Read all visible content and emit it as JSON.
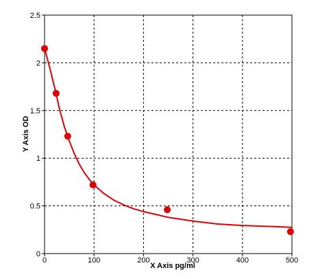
{
  "chart_data": {
    "type": "scatter",
    "title": "",
    "xlabel": "X Axis pg/ml",
    "ylabel": "Y Axis OD",
    "xlim": [
      0,
      500
    ],
    "ylim": [
      0,
      2.5
    ],
    "xticks": [
      "0",
      "100",
      "200",
      "300",
      "400",
      "500"
    ],
    "yticks": [
      "0",
      "0.5",
      "1",
      "1.5",
      "2",
      "2.5"
    ],
    "grid": true,
    "grid_style": "dashed",
    "points": {
      "x": [
        0,
        23.4,
        46.9,
        98,
        248,
        497
      ],
      "y": [
        2.15,
        1.68,
        1.23,
        0.72,
        0.46,
        0.23
      ]
    },
    "curve": {
      "x": [
        0,
        10,
        20,
        30,
        40,
        50,
        60,
        70,
        80,
        90,
        100,
        120,
        140,
        160,
        180,
        200,
        225,
        250,
        275,
        300,
        350,
        400,
        450,
        500
      ],
      "y": [
        2.15,
        1.96,
        1.75,
        1.52,
        1.33,
        1.18,
        1.05,
        0.94,
        0.85,
        0.78,
        0.72,
        0.63,
        0.56,
        0.51,
        0.47,
        0.44,
        0.41,
        0.38,
        0.36,
        0.34,
        0.31,
        0.295,
        0.285,
        0.275
      ]
    },
    "colors": {
      "series": "#e00000",
      "grid": "#000000",
      "axis": "#000000"
    }
  }
}
